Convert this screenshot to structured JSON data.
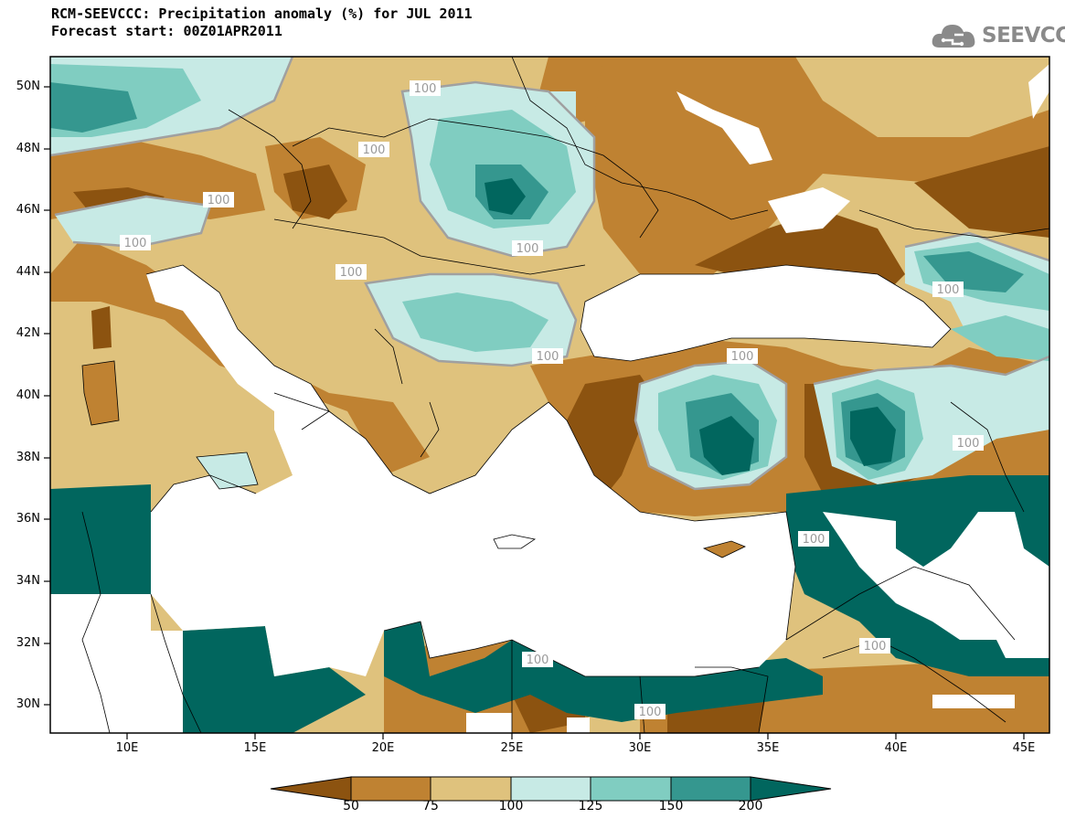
{
  "header": {
    "title_line1": "RCM-SEEVCCC: Precipitation anomaly (%) for JUL 2011",
    "title_line2": "Forecast start: 00Z01APR2011",
    "logo_text": "SEEVCCC"
  },
  "map": {
    "lat_labels": [
      "50N",
      "48N",
      "46N",
      "44N",
      "42N",
      "40N",
      "38N",
      "36N",
      "34N",
      "32N",
      "30N"
    ],
    "lon_labels": [
      "10E",
      "15E",
      "20E",
      "25E",
      "30E",
      "35E",
      "40E",
      "45E"
    ],
    "contour_label": "100"
  },
  "colorbar": {
    "labels": [
      "50",
      "75",
      "100",
      "125",
      "150",
      "200"
    ],
    "colors": [
      "#8c5310",
      "#bf8232",
      "#dfc27d",
      "#c7eae5",
      "#80cdc1",
      "#35978f",
      "#01665e"
    ]
  }
}
